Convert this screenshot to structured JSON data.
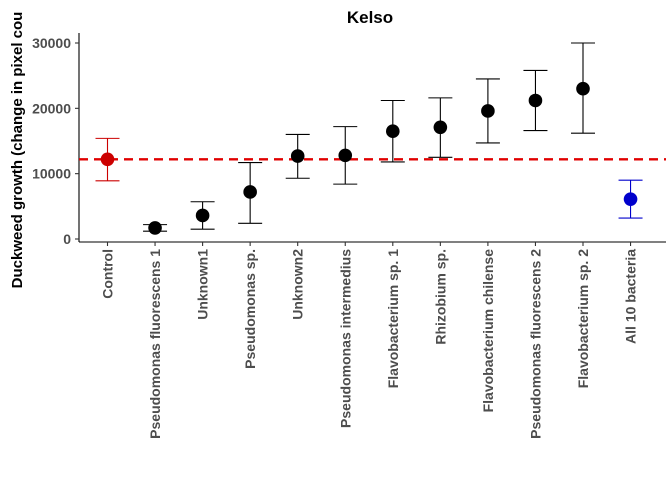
{
  "chart_data": {
    "type": "scatter",
    "title": "Kelso",
    "xlabel": "",
    "ylabel": "Duckweed growth (change in pixel cou",
    "ylim": [
      0,
      32000
    ],
    "yticks": [
      0,
      10000,
      20000,
      30000
    ],
    "ytick_labels": [
      "0",
      "10000",
      "20000",
      "30000"
    ],
    "reference_line": {
      "y": 12200,
      "color": "#e00000",
      "style": "dashed"
    },
    "grid": false,
    "legend": "none",
    "categories": [
      "Control",
      "Pseudomonas fluorescens 1",
      "Unknown1",
      "Pseudomonas sp.",
      "Unknown2",
      "Pseudomonas intermedius",
      "Flavobacterium sp. 1",
      "Rhizobium sp.",
      "Flavobacterium chilense",
      "Pseudomonas fluorescens 2",
      "Flavobacterium sp. 2",
      "All 10 bacteria"
    ],
    "values": [
      12200,
      1700,
      3600,
      7200,
      12700,
      12800,
      16500,
      17100,
      19600,
      21200,
      23000,
      6100
    ],
    "error_low": [
      8900,
      1200,
      1500,
      2400,
      9300,
      8400,
      11800,
      12500,
      14700,
      16600,
      16200,
      3200
    ],
    "error_high": [
      15400,
      2200,
      5700,
      11700,
      16000,
      17200,
      21200,
      21600,
      24500,
      25800,
      30000,
      9000
    ],
    "colors": [
      "#cc0000",
      "#000000",
      "#000000",
      "#000000",
      "#000000",
      "#000000",
      "#000000",
      "#000000",
      "#000000",
      "#000000",
      "#000000",
      "#0000cc"
    ]
  }
}
